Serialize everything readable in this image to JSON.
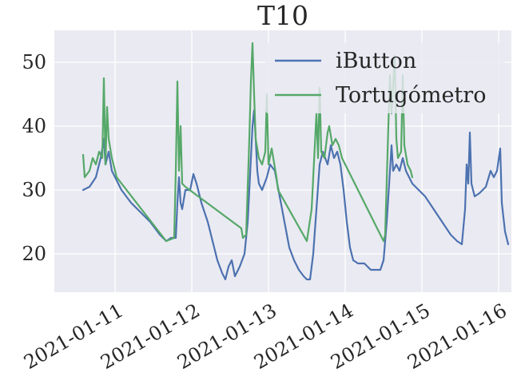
{
  "chart_data": {
    "type": "line",
    "title": "T10",
    "xlabel": "",
    "ylabel": "",
    "x_axis_type": "date",
    "xlim": [
      "2021-01-10T05:00",
      "2021-01-16T04:00"
    ],
    "ylim": [
      14,
      55
    ],
    "x_ticks": [
      "2021-01-11",
      "2021-01-12",
      "2021-01-13",
      "2021-01-14",
      "2021-01-15",
      "2021-01-16"
    ],
    "y_ticks": [
      20,
      30,
      40,
      50
    ],
    "grid": true,
    "legend_position": "top-right",
    "series": [
      {
        "name": "iButton",
        "color": "#4c72b0",
        "points": [
          [
            "2021-01-10T14:00",
            30
          ],
          [
            "2021-01-10T16:00",
            30.5
          ],
          [
            "2021-01-10T18:00",
            32
          ],
          [
            "2021-01-10T19:30",
            35
          ],
          [
            "2021-01-10T20:30",
            38
          ],
          [
            "2021-01-10T21:00",
            34
          ],
          [
            "2021-01-10T22:00",
            36
          ],
          [
            "2021-01-10T23:00",
            33
          ],
          [
            "2021-01-11T00:00",
            32
          ],
          [
            "2021-01-11T02:00",
            30
          ],
          [
            "2021-01-11T05:00",
            28
          ],
          [
            "2021-01-11T08:00",
            26.5
          ],
          [
            "2021-01-11T11:00",
            25
          ],
          [
            "2021-01-11T14:00",
            23
          ],
          [
            "2021-01-11T16:00",
            22
          ],
          [
            "2021-01-11T17:30",
            22.5
          ],
          [
            "2021-01-11T19:00",
            22.5
          ],
          [
            "2021-01-11T19:30",
            28
          ],
          [
            "2021-01-11T20:00",
            32
          ],
          [
            "2021-01-11T20:30",
            28
          ],
          [
            "2021-01-11T21:00",
            27
          ],
          [
            "2021-01-11T22:00",
            30
          ],
          [
            "2021-01-11T23:30",
            30
          ],
          [
            "2021-01-12T00:30",
            32.5
          ],
          [
            "2021-01-12T01:30",
            31
          ],
          [
            "2021-01-12T03:00",
            28
          ],
          [
            "2021-01-12T05:00",
            25
          ],
          [
            "2021-01-12T06:30",
            22
          ],
          [
            "2021-01-12T08:00",
            19
          ],
          [
            "2021-01-12T09:30",
            17
          ],
          [
            "2021-01-12T10:30",
            16
          ],
          [
            "2021-01-12T11:30",
            18
          ],
          [
            "2021-01-12T12:30",
            19
          ],
          [
            "2021-01-12T13:30",
            16.5
          ],
          [
            "2021-01-12T15:00",
            18
          ],
          [
            "2021-01-12T16:30",
            20
          ],
          [
            "2021-01-12T17:30",
            25
          ],
          [
            "2021-01-12T18:30",
            35
          ],
          [
            "2021-01-12T19:00",
            40
          ],
          [
            "2021-01-12T19:30",
            42.5
          ],
          [
            "2021-01-12T20:00",
            38
          ],
          [
            "2021-01-12T20:30",
            33
          ],
          [
            "2021-01-12T21:00",
            31
          ],
          [
            "2021-01-12T22:00",
            30
          ],
          [
            "2021-01-12T23:30",
            32
          ],
          [
            "2021-01-13T00:30",
            34
          ],
          [
            "2021-01-13T02:00",
            33
          ],
          [
            "2021-01-13T03:30",
            29
          ],
          [
            "2021-01-13T05:00",
            25
          ],
          [
            "2021-01-13T06:30",
            21
          ],
          [
            "2021-01-13T08:00",
            19
          ],
          [
            "2021-01-13T09:30",
            17.5
          ],
          [
            "2021-01-13T11:00",
            16.5
          ],
          [
            "2021-01-13T12:00",
            16
          ],
          [
            "2021-01-13T13:00",
            16
          ],
          [
            "2021-01-13T14:00",
            20
          ],
          [
            "2021-01-13T15:00",
            27
          ],
          [
            "2021-01-13T16:00",
            34
          ],
          [
            "2021-01-13T17:00",
            36
          ],
          [
            "2021-01-13T18:30",
            34
          ],
          [
            "2021-01-13T19:30",
            37
          ],
          [
            "2021-01-13T20:30",
            35
          ],
          [
            "2021-01-13T21:30",
            36
          ],
          [
            "2021-01-13T22:30",
            34
          ],
          [
            "2021-01-13T23:30",
            30
          ],
          [
            "2021-01-14T00:30",
            25
          ],
          [
            "2021-01-14T01:30",
            21
          ],
          [
            "2021-01-14T02:30",
            19
          ],
          [
            "2021-01-14T04:00",
            18.5
          ],
          [
            "2021-01-14T06:00",
            18.5
          ],
          [
            "2021-01-14T08:00",
            17.5
          ],
          [
            "2021-01-14T11:00",
            17.5
          ],
          [
            "2021-01-14T12:00",
            19
          ],
          [
            "2021-01-14T13:00",
            25
          ],
          [
            "2021-01-14T14:00",
            33
          ],
          [
            "2021-01-14T14:30",
            37
          ],
          [
            "2021-01-14T15:00",
            33
          ],
          [
            "2021-01-14T16:00",
            34
          ],
          [
            "2021-01-14T17:00",
            33
          ],
          [
            "2021-01-14T18:00",
            35
          ],
          [
            "2021-01-14T19:00",
            33
          ],
          [
            "2021-01-14T20:00",
            32
          ],
          [
            "2021-01-14T21:00",
            31
          ],
          [
            "2021-01-14T23:00",
            30
          ],
          [
            "2021-01-15T01:00",
            29
          ],
          [
            "2021-01-15T03:00",
            27.5
          ],
          [
            "2021-01-15T05:00",
            26
          ],
          [
            "2021-01-15T07:00",
            24.5
          ],
          [
            "2021-01-15T09:00",
            23
          ],
          [
            "2021-01-15T11:00",
            22
          ],
          [
            "2021-01-15T12:30",
            21.5
          ],
          [
            "2021-01-15T13:30",
            27
          ],
          [
            "2021-01-15T14:00",
            34
          ],
          [
            "2021-01-15T14:30",
            31
          ],
          [
            "2021-01-15T15:00",
            39
          ],
          [
            "2021-01-15T15:30",
            31
          ],
          [
            "2021-01-15T16:30",
            29
          ],
          [
            "2021-01-15T18:00",
            29.5
          ],
          [
            "2021-01-15T20:00",
            30.5
          ],
          [
            "2021-01-15T21:30",
            33
          ],
          [
            "2021-01-15T22:30",
            32
          ],
          [
            "2021-01-15T23:30",
            33
          ],
          [
            "2021-01-16T00:30",
            36.5
          ],
          [
            "2021-01-16T01:00",
            28
          ],
          [
            "2021-01-16T02:00",
            23.5
          ],
          [
            "2021-01-16T03:00",
            21.5
          ]
        ]
      },
      {
        "name": "Tortugómetro",
        "color": "#55a868",
        "points": [
          [
            "2021-01-10T14:00",
            35.5
          ],
          [
            "2021-01-10T14:30",
            32
          ],
          [
            "2021-01-10T16:00",
            33
          ],
          [
            "2021-01-10T17:00",
            35
          ],
          [
            "2021-01-10T18:00",
            34
          ],
          [
            "2021-01-10T19:00",
            36
          ],
          [
            "2021-01-10T20:00",
            35
          ],
          [
            "2021-01-10T20:30",
            47.5
          ],
          [
            "2021-01-10T21:00",
            34
          ],
          [
            "2021-01-10T21:30",
            43
          ],
          [
            "2021-01-10T22:00",
            38
          ],
          [
            "2021-01-10T23:00",
            35
          ],
          [
            "2021-01-11T00:30",
            32
          ],
          [
            "2021-01-11T16:00",
            22
          ],
          [
            "2021-01-11T18:30",
            22.5
          ],
          [
            "2021-01-11T19:00",
            33
          ],
          [
            "2021-01-11T19:30",
            47
          ],
          [
            "2021-01-11T20:00",
            33
          ],
          [
            "2021-01-11T20:30",
            40
          ],
          [
            "2021-01-11T21:00",
            31
          ],
          [
            "2021-01-11T22:00",
            30.5
          ],
          [
            "2021-01-12T15:30",
            24
          ],
          [
            "2021-01-12T16:00",
            22.5
          ],
          [
            "2021-01-12T17:00",
            23
          ],
          [
            "2021-01-12T18:00",
            38
          ],
          [
            "2021-01-12T18:30",
            47
          ],
          [
            "2021-01-12T19:00",
            53
          ],
          [
            "2021-01-12T19:30",
            45
          ],
          [
            "2021-01-12T20:00",
            38
          ],
          [
            "2021-01-12T21:00",
            35
          ],
          [
            "2021-01-12T22:00",
            34
          ],
          [
            "2021-01-12T23:00",
            36
          ],
          [
            "2021-01-12T23:30",
            45
          ],
          [
            "2021-01-13T00:00",
            34
          ],
          [
            "2021-01-13T01:00",
            36.5
          ],
          [
            "2021-01-13T02:30",
            32
          ],
          [
            "2021-01-13T03:00",
            30
          ],
          [
            "2021-01-13T12:00",
            22
          ],
          [
            "2021-01-13T13:30",
            27
          ],
          [
            "2021-01-13T14:30",
            37
          ],
          [
            "2021-01-13T15:00",
            42
          ],
          [
            "2021-01-13T15:30",
            35
          ],
          [
            "2021-01-13T16:00",
            46
          ],
          [
            "2021-01-13T16:30",
            36
          ],
          [
            "2021-01-13T17:30",
            35
          ],
          [
            "2021-01-13T18:30",
            39
          ],
          [
            "2021-01-13T19:00",
            40
          ],
          [
            "2021-01-13T20:00",
            37
          ],
          [
            "2021-01-13T21:00",
            38
          ],
          [
            "2021-01-13T22:00",
            37
          ],
          [
            "2021-01-13T23:00",
            35
          ],
          [
            "2021-01-14T12:00",
            22
          ],
          [
            "2021-01-14T12:30",
            23
          ],
          [
            "2021-01-14T13:30",
            40
          ],
          [
            "2021-01-14T14:00",
            48
          ],
          [
            "2021-01-14T14:30",
            42
          ],
          [
            "2021-01-14T15:30",
            51
          ],
          [
            "2021-01-14T16:00",
            38
          ],
          [
            "2021-01-14T16:30",
            35
          ],
          [
            "2021-01-14T17:30",
            36
          ],
          [
            "2021-01-14T18:00",
            48
          ],
          [
            "2021-01-14T18:30",
            37
          ],
          [
            "2021-01-14T19:30",
            34
          ],
          [
            "2021-01-14T20:30",
            33
          ],
          [
            "2021-01-14T21:00",
            32
          ]
        ]
      }
    ]
  }
}
